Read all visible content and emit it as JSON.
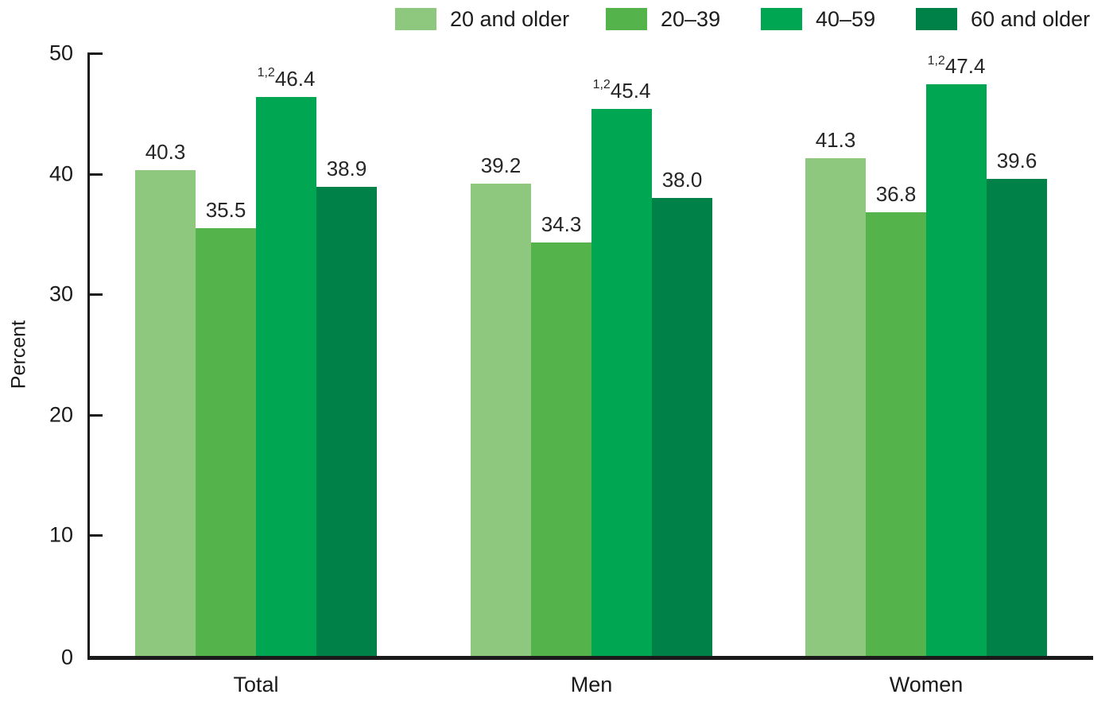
{
  "chart_data": {
    "type": "bar",
    "title": "",
    "categories": [
      "Total",
      "Men",
      "Women"
    ],
    "series": [
      {
        "name": "20 and older",
        "color": "#8DC87E",
        "values": [
          40.3,
          39.2,
          41.3
        ],
        "value_labels": [
          "40.3",
          "39.2",
          "41.3"
        ],
        "footnote_sup": ""
      },
      {
        "name": "20–39",
        "color": "#54B34A",
        "values": [
          35.5,
          34.3,
          36.8
        ],
        "value_labels": [
          "35.5",
          "34.3",
          "36.8"
        ],
        "footnote_sup": ""
      },
      {
        "name": "40–59",
        "color": "#00A651",
        "values": [
          46.4,
          45.4,
          47.4
        ],
        "value_labels": [
          "46.4",
          "45.4",
          "47.4"
        ],
        "footnote_sup": "1,2"
      },
      {
        "name": "60 and older",
        "color": "#008148",
        "values": [
          38.9,
          38.0,
          39.6
        ],
        "value_labels": [
          "38.9",
          "38.0",
          "39.6"
        ],
        "footnote_sup": ""
      }
    ],
    "ylabel": "Percent",
    "xlabel": "",
    "ylim": [
      0,
      50
    ],
    "y_ticks": [
      0,
      10,
      20,
      30,
      40,
      50
    ],
    "grid": false,
    "legend_position": "top",
    "bar_value_labels": true,
    "axis_color": "#1a1a1a"
  }
}
